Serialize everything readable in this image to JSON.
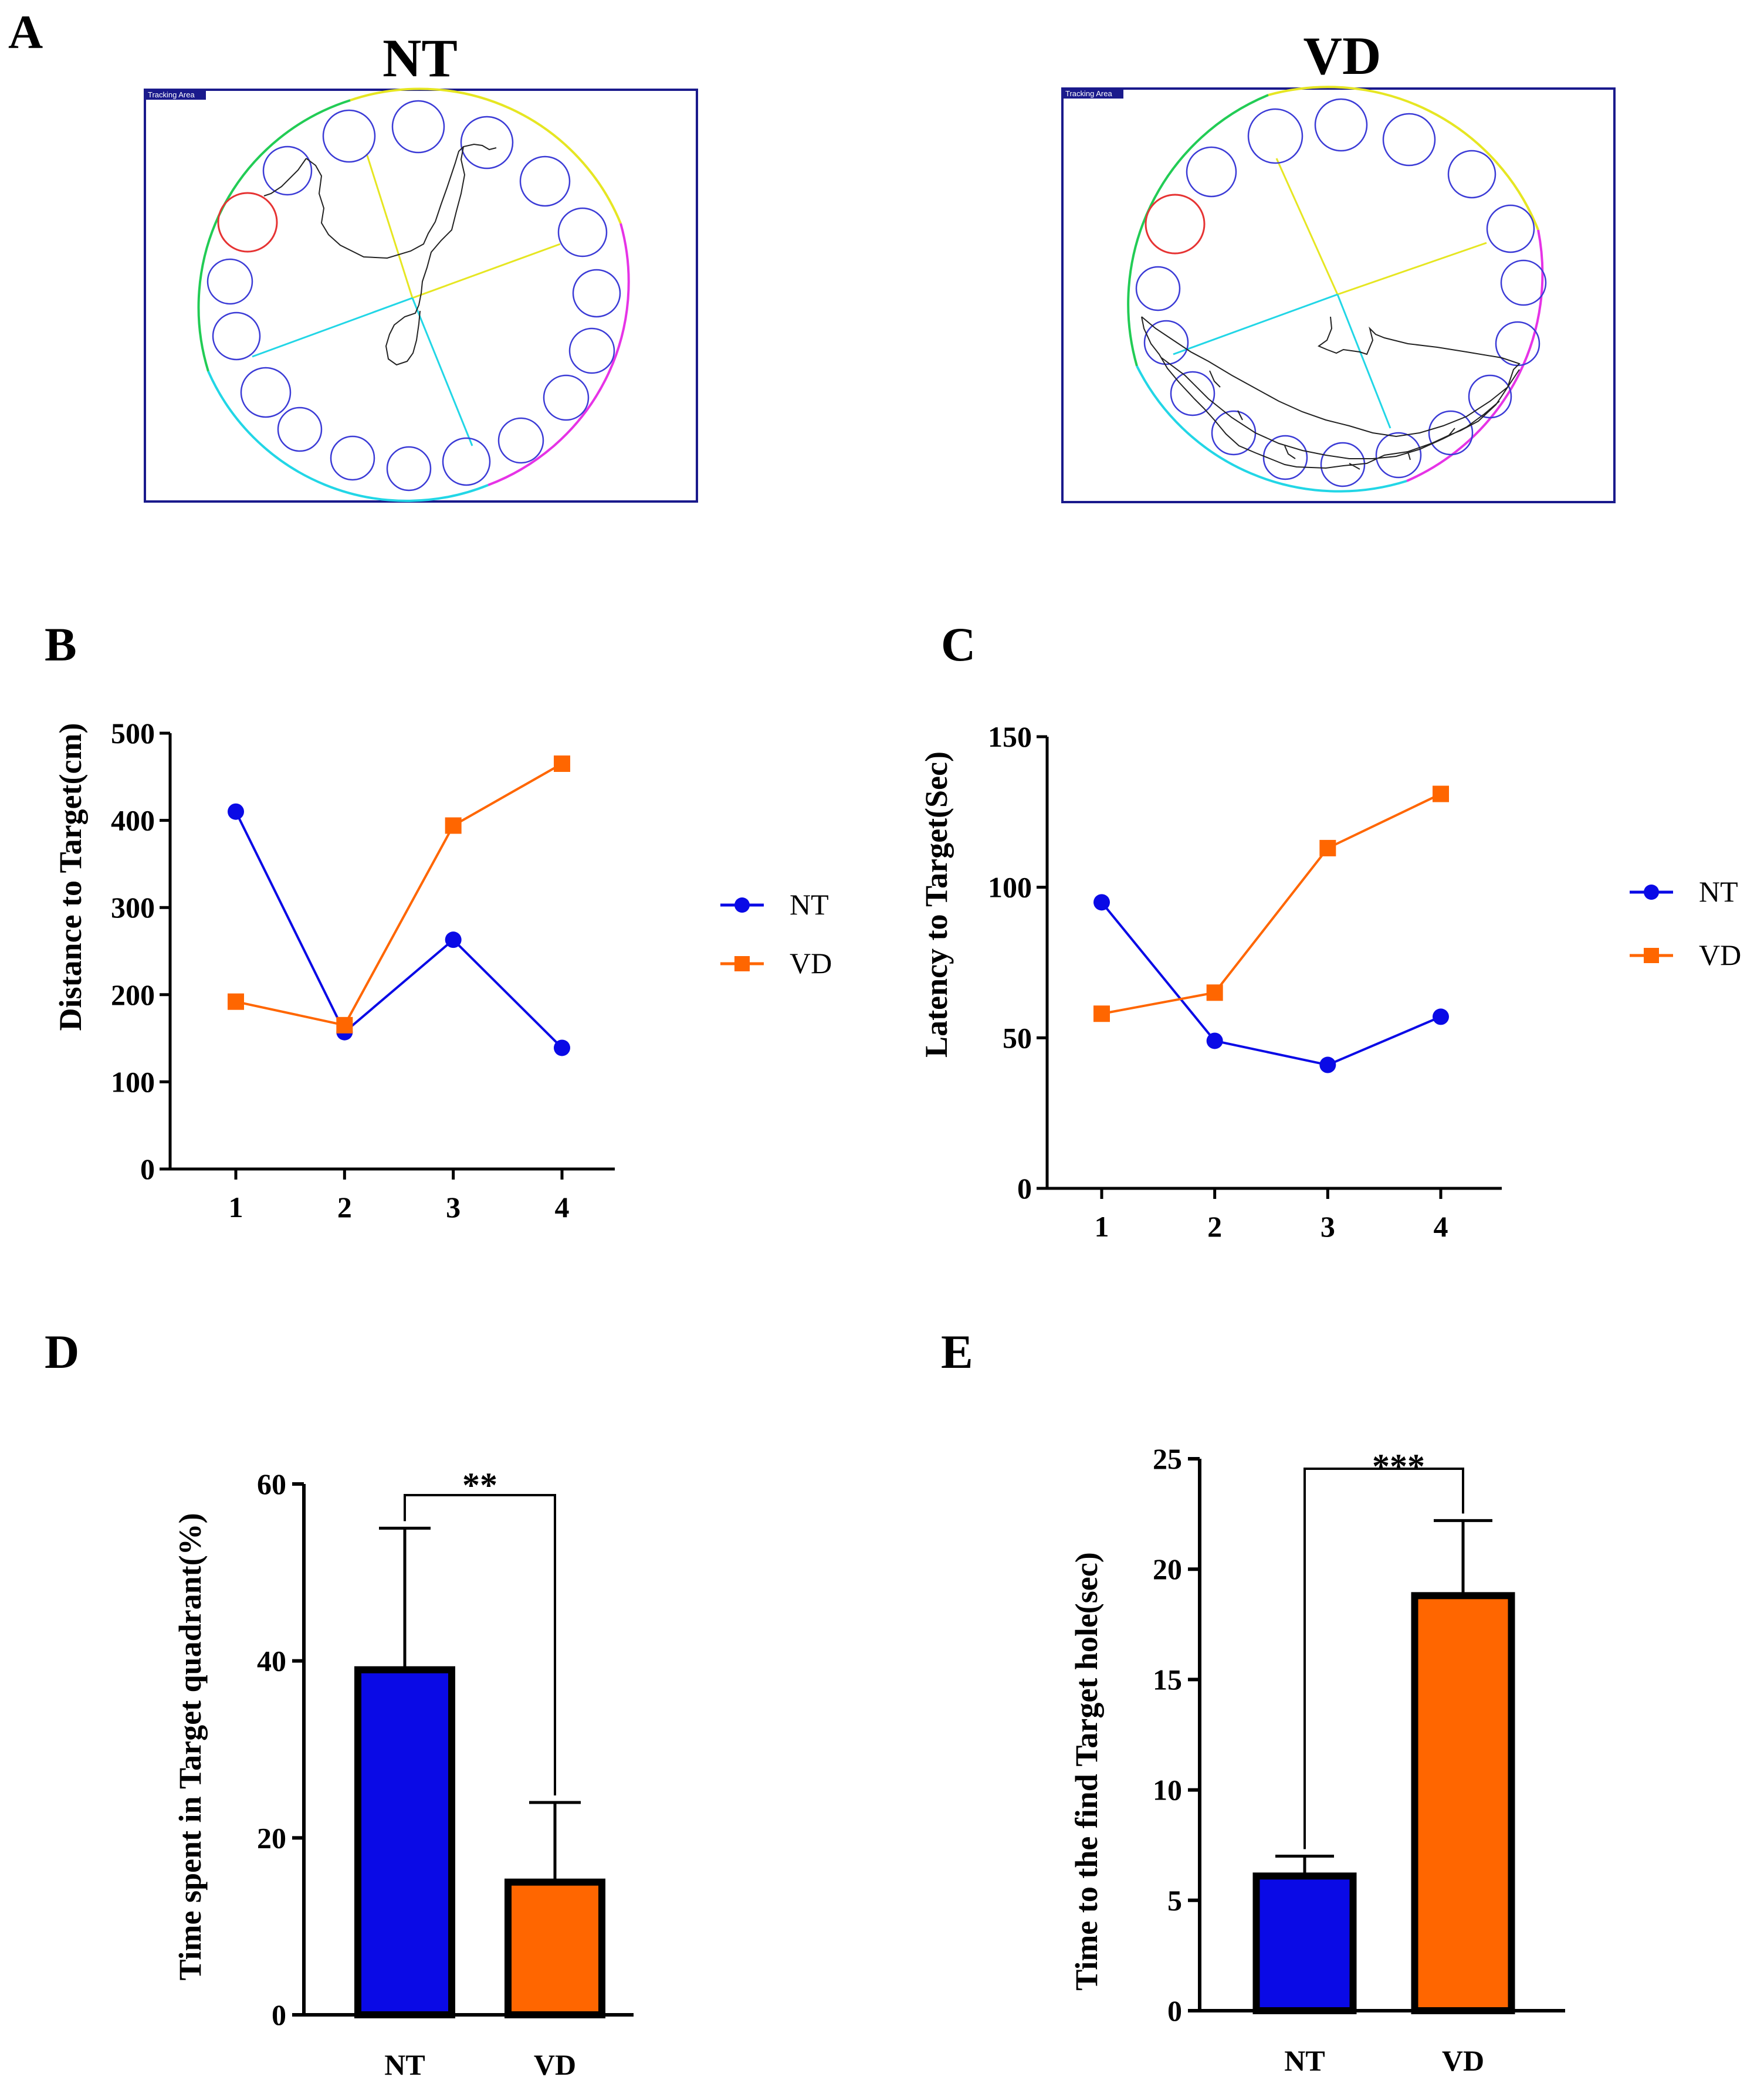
{
  "figure": {
    "panels": {
      "A": "A",
      "B": "B",
      "C": "C",
      "D": "D",
      "E": "E"
    },
    "maze": [
      {
        "title": "NT",
        "tracking_label": "Tracking Area"
      },
      {
        "title": "VD",
        "tracking_label": "Tracking Area"
      }
    ],
    "colors": {
      "NT": "#0a0ae6",
      "VD": "#ff6600",
      "maze_border": "#1a1a8c",
      "hole": "#3b3bd6",
      "target_hole": "#e63333",
      "quadrant_green": "#22cc55",
      "quadrant_yellow": "#e6e622",
      "quadrant_cyan": "#22d6e6",
      "quadrant_magenta": "#e633e6"
    }
  },
  "chart_data": [
    {
      "panel": "B",
      "type": "line",
      "title": "",
      "xlabel": "",
      "ylabel": "Distance to Target(cm)",
      "categories": [
        "1",
        "2",
        "3",
        "4"
      ],
      "series": [
        {
          "name": "NT",
          "marker": "circle",
          "values": [
            410,
            157,
            263,
            139
          ]
        },
        {
          "name": "VD",
          "marker": "square",
          "values": [
            192,
            165,
            394,
            465
          ]
        }
      ],
      "ylim": [
        0,
        500
      ],
      "yticks": [
        0,
        100,
        200,
        300,
        400,
        500
      ],
      "ytick_labels": [
        "0",
        "100",
        "200",
        "300",
        "400",
        "500"
      ],
      "legend": [
        "NT",
        "VD"
      ],
      "legend_position": "right"
    },
    {
      "panel": "C",
      "type": "line",
      "title": "",
      "xlabel": "",
      "ylabel": "Latency to Target(Sec)",
      "categories": [
        "1",
        "2",
        "3",
        "4"
      ],
      "series": [
        {
          "name": "NT",
          "marker": "circle",
          "values": [
            95,
            49,
            41,
            57
          ]
        },
        {
          "name": "VD",
          "marker": "square",
          "values": [
            58,
            65,
            113,
            131
          ]
        }
      ],
      "ylim": [
        0,
        150
      ],
      "yticks": [
        0,
        50,
        100,
        150
      ],
      "ytick_labels": [
        "0",
        "50",
        "100",
        "150"
      ],
      "legend": [
        "NT",
        "VD"
      ],
      "legend_position": "right"
    },
    {
      "panel": "D",
      "type": "bar",
      "title": "",
      "xlabel": "",
      "ylabel": "Time spent in Target quadrant(%)",
      "categories": [
        "NT",
        "VD"
      ],
      "values": [
        39,
        15
      ],
      "errors": [
        16,
        9
      ],
      "ylim": [
        0,
        60
      ],
      "yticks": [
        0,
        20,
        40,
        60
      ],
      "ytick_labels": [
        "0",
        "20",
        "40",
        "60"
      ],
      "significance": "**"
    },
    {
      "panel": "E",
      "type": "bar",
      "title": "",
      "xlabel": "",
      "ylabel": "Time to the  find Target hole(sec)",
      "categories": [
        "NT",
        "VD"
      ],
      "values": [
        6.1,
        18.8
      ],
      "errors": [
        0.9,
        3.4
      ],
      "ylim": [
        0,
        25
      ],
      "yticks": [
        0,
        5,
        10,
        15,
        20,
        25
      ],
      "ytick_labels": [
        "0",
        "5",
        "10",
        "15",
        "20",
        "25"
      ],
      "significance": "***"
    }
  ]
}
